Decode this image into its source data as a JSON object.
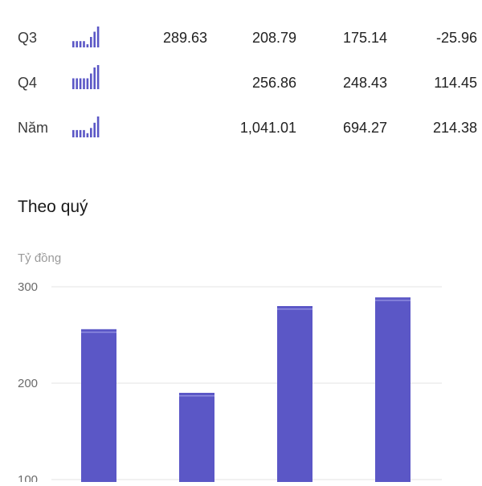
{
  "table": {
    "rows": [
      {
        "label": "Q3",
        "values": [
          "289.63",
          "208.79",
          "175.14",
          "-25.96"
        ],
        "spark": [
          0.3,
          0.3,
          0.3,
          0.3,
          0.15,
          0.5,
          0.75,
          1.0
        ]
      },
      {
        "label": "Q4",
        "values": [
          "",
          "256.86",
          "248.43",
          "114.45"
        ],
        "spark": [
          0.45,
          0.45,
          0.45,
          0.45,
          0.45,
          0.65,
          0.9,
          1.0
        ]
      },
      {
        "label": "Năm",
        "values": [
          "",
          "1,041.01",
          "694.27",
          "214.38"
        ],
        "spark": [
          0.35,
          0.35,
          0.35,
          0.35,
          0.2,
          0.45,
          0.7,
          1.0
        ]
      }
    ]
  },
  "section_title": "Theo quý",
  "colors": {
    "bar": "#5b57c6",
    "bar_top": "#8f8ce0",
    "grid": "#e3e3e3",
    "axis_text": "#6b6b6b",
    "unit_text": "#9a9a9a"
  },
  "chart_data": {
    "type": "bar",
    "ylabel": "Tỷ đồng",
    "categories": [
      "",
      "",
      "",
      ""
    ],
    "values": [
      256,
      190,
      280,
      289
    ],
    "ylim": [
      100,
      300
    ],
    "yticks": [
      "300",
      "200",
      "100"
    ],
    "grid": true
  }
}
